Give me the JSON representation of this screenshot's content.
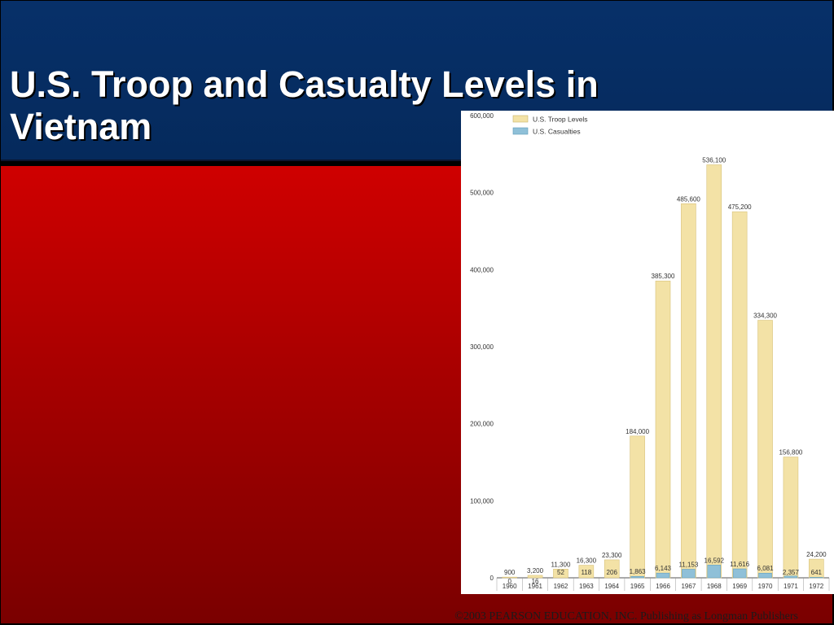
{
  "slide": {
    "title": "U.S. Troop and Casualty Levels in Vietnam",
    "footer": "©2003 PEARSON EDUCATION, INC. Publishing as Longman Publishers"
  },
  "colors": {
    "header_blue": "#073069",
    "body_red": "#cf0000",
    "troop_bar": "#f3e2a6",
    "casualty_bar": "#8fc0d8"
  },
  "chart_data": {
    "type": "bar",
    "categories": [
      "1960",
      "1961",
      "1962",
      "1963",
      "1964",
      "1965",
      "1966",
      "1967",
      "1968",
      "1969",
      "1970",
      "1971",
      "1972"
    ],
    "series": [
      {
        "name": "U.S. Troop Levels",
        "values": [
          900,
          3200,
          11300,
          16300,
          23300,
          184000,
          385300,
          485600,
          536100,
          475200,
          334300,
          156800,
          24200
        ],
        "labels": [
          "900",
          "3,200",
          "11,300",
          "16,300",
          "23,300",
          "184,000",
          "385,300",
          "485,600",
          "536,100",
          "475,200",
          "334,300",
          "156,800",
          "24,200"
        ]
      },
      {
        "name": "U.S. Casualties",
        "values": [
          0,
          16,
          52,
          118,
          206,
          1863,
          6143,
          11153,
          16592,
          11616,
          6081,
          2357,
          641
        ],
        "labels": [
          "0",
          "16",
          "52",
          "118",
          "206",
          "1,863",
          "6,143",
          "11,153",
          "16,592",
          "11,616",
          "6,081",
          "2,357",
          "641"
        ]
      }
    ],
    "yticks": [
      0,
      100000,
      200000,
      300000,
      400000,
      500000,
      600000
    ],
    "ytick_labels": [
      "0",
      "100,000",
      "200,000",
      "300,000",
      "400,000",
      "500,000",
      "600,000"
    ],
    "ylim": [
      0,
      600000
    ],
    "grid": false,
    "legend": "top-left",
    "title": "",
    "xlabel": "",
    "ylabel": ""
  }
}
